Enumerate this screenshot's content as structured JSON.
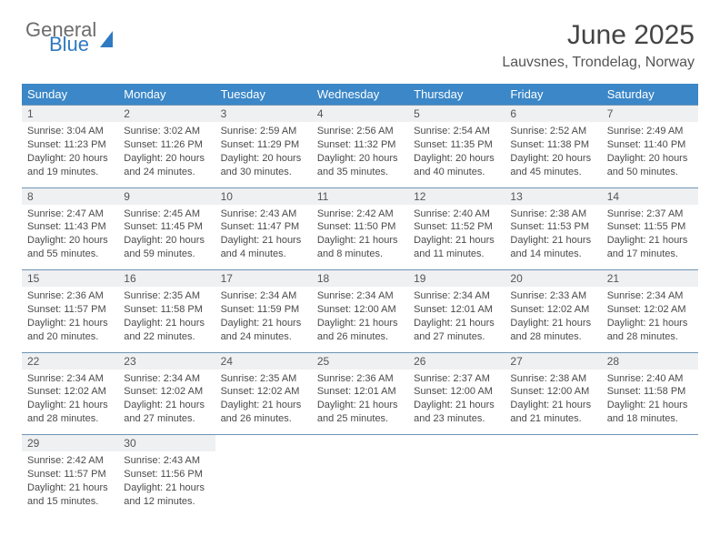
{
  "brand": {
    "word1": "General",
    "word2": "Blue"
  },
  "title": "June 2025",
  "location": "Lauvsnes, Trondelag, Norway",
  "colors": {
    "header_bg": "#3b87c8",
    "daynum_bg": "#eef0f1",
    "rule": "#6f94b5",
    "text": "#4a4a4a",
    "brand_blue": "#2f7ac0"
  },
  "weekdays": [
    "Sunday",
    "Monday",
    "Tuesday",
    "Wednesday",
    "Thursday",
    "Friday",
    "Saturday"
  ],
  "weeks": [
    [
      {
        "n": "1",
        "sr": "3:04 AM",
        "ss": "11:23 PM",
        "dl": "20 hours and 19 minutes."
      },
      {
        "n": "2",
        "sr": "3:02 AM",
        "ss": "11:26 PM",
        "dl": "20 hours and 24 minutes."
      },
      {
        "n": "3",
        "sr": "2:59 AM",
        "ss": "11:29 PM",
        "dl": "20 hours and 30 minutes."
      },
      {
        "n": "4",
        "sr": "2:56 AM",
        "ss": "11:32 PM",
        "dl": "20 hours and 35 minutes."
      },
      {
        "n": "5",
        "sr": "2:54 AM",
        "ss": "11:35 PM",
        "dl": "20 hours and 40 minutes."
      },
      {
        "n": "6",
        "sr": "2:52 AM",
        "ss": "11:38 PM",
        "dl": "20 hours and 45 minutes."
      },
      {
        "n": "7",
        "sr": "2:49 AM",
        "ss": "11:40 PM",
        "dl": "20 hours and 50 minutes."
      }
    ],
    [
      {
        "n": "8",
        "sr": "2:47 AM",
        "ss": "11:43 PM",
        "dl": "20 hours and 55 minutes."
      },
      {
        "n": "9",
        "sr": "2:45 AM",
        "ss": "11:45 PM",
        "dl": "20 hours and 59 minutes."
      },
      {
        "n": "10",
        "sr": "2:43 AM",
        "ss": "11:47 PM",
        "dl": "21 hours and 4 minutes."
      },
      {
        "n": "11",
        "sr": "2:42 AM",
        "ss": "11:50 PM",
        "dl": "21 hours and 8 minutes."
      },
      {
        "n": "12",
        "sr": "2:40 AM",
        "ss": "11:52 PM",
        "dl": "21 hours and 11 minutes."
      },
      {
        "n": "13",
        "sr": "2:38 AM",
        "ss": "11:53 PM",
        "dl": "21 hours and 14 minutes."
      },
      {
        "n": "14",
        "sr": "2:37 AM",
        "ss": "11:55 PM",
        "dl": "21 hours and 17 minutes."
      }
    ],
    [
      {
        "n": "15",
        "sr": "2:36 AM",
        "ss": "11:57 PM",
        "dl": "21 hours and 20 minutes."
      },
      {
        "n": "16",
        "sr": "2:35 AM",
        "ss": "11:58 PM",
        "dl": "21 hours and 22 minutes."
      },
      {
        "n": "17",
        "sr": "2:34 AM",
        "ss": "11:59 PM",
        "dl": "21 hours and 24 minutes."
      },
      {
        "n": "18",
        "sr": "2:34 AM",
        "ss": "12:00 AM",
        "dl": "21 hours and 26 minutes."
      },
      {
        "n": "19",
        "sr": "2:34 AM",
        "ss": "12:01 AM",
        "dl": "21 hours and 27 minutes."
      },
      {
        "n": "20",
        "sr": "2:33 AM",
        "ss": "12:02 AM",
        "dl": "21 hours and 28 minutes."
      },
      {
        "n": "21",
        "sr": "2:34 AM",
        "ss": "12:02 AM",
        "dl": "21 hours and 28 minutes."
      }
    ],
    [
      {
        "n": "22",
        "sr": "2:34 AM",
        "ss": "12:02 AM",
        "dl": "21 hours and 28 minutes."
      },
      {
        "n": "23",
        "sr": "2:34 AM",
        "ss": "12:02 AM",
        "dl": "21 hours and 27 minutes."
      },
      {
        "n": "24",
        "sr": "2:35 AM",
        "ss": "12:02 AM",
        "dl": "21 hours and 26 minutes."
      },
      {
        "n": "25",
        "sr": "2:36 AM",
        "ss": "12:01 AM",
        "dl": "21 hours and 25 minutes."
      },
      {
        "n": "26",
        "sr": "2:37 AM",
        "ss": "12:00 AM",
        "dl": "21 hours and 23 minutes."
      },
      {
        "n": "27",
        "sr": "2:38 AM",
        "ss": "12:00 AM",
        "dl": "21 hours and 21 minutes."
      },
      {
        "n": "28",
        "sr": "2:40 AM",
        "ss": "11:58 PM",
        "dl": "21 hours and 18 minutes."
      }
    ],
    [
      {
        "n": "29",
        "sr": "2:42 AM",
        "ss": "11:57 PM",
        "dl": "21 hours and 15 minutes."
      },
      {
        "n": "30",
        "sr": "2:43 AM",
        "ss": "11:56 PM",
        "dl": "21 hours and 12 minutes."
      },
      null,
      null,
      null,
      null,
      null
    ]
  ],
  "labels": {
    "sunrise": "Sunrise: ",
    "sunset": "Sunset: ",
    "daylight": "Daylight: "
  }
}
